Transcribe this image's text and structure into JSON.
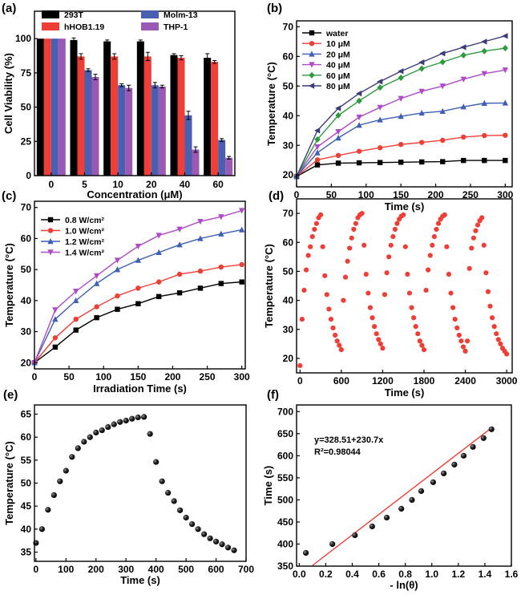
{
  "chart_data": [
    {
      "panel": "(a)",
      "type": "bar",
      "xlabel": "Concentration (μM)",
      "ylabel": "Cell Viability (%)",
      "ylim": [
        0,
        120
      ],
      "yticks": [
        0,
        25,
        50,
        75,
        100
      ],
      "categories": [
        "0",
        "5",
        "10",
        "20",
        "40",
        "60"
      ],
      "legend_position": "top",
      "series": [
        {
          "name": "293T",
          "color": "#000000",
          "values": [
            100,
            99,
            98,
            98,
            88,
            86
          ],
          "errors": [
            0,
            1.5,
            1,
            1,
            1,
            3
          ]
        },
        {
          "name": "hHOB1.19",
          "color": "#ef3e36",
          "values": [
            100,
            87,
            87,
            87,
            86,
            83
          ],
          "errors": [
            0,
            2,
            2,
            3,
            1.5,
            1
          ]
        },
        {
          "name": "Molm-13",
          "color": "#4a5fb0",
          "values": [
            100,
            77,
            66,
            66,
            44,
            26
          ],
          "errors": [
            0,
            1,
            1,
            2,
            3,
            1
          ]
        },
        {
          "name": "THP-1",
          "color": "#9b59b6",
          "values": [
            100,
            72,
            64,
            65,
            19,
            13
          ],
          "errors": [
            0,
            2,
            2,
            1,
            2,
            1
          ]
        }
      ]
    },
    {
      "panel": "(b)",
      "type": "line",
      "xlabel": "Time (s)",
      "ylabel": "Temperature (°C)",
      "xlim": [
        0,
        310
      ],
      "ylim": [
        16,
        72
      ],
      "xticks": [
        0,
        50,
        100,
        150,
        200,
        250,
        300
      ],
      "yticks": [
        20,
        30,
        40,
        50,
        60,
        70
      ],
      "legend_position": "top-left",
      "x": [
        0,
        30,
        60,
        90,
        120,
        150,
        180,
        210,
        240,
        270,
        300
      ],
      "series": [
        {
          "name": "water",
          "color": "#000000",
          "marker": "square",
          "values": [
            19.5,
            23.4,
            24.0,
            24.1,
            24.2,
            24.3,
            24.4,
            24.5,
            24.9,
            24.9,
            24.9
          ]
        },
        {
          "name": "10 μM",
          "color": "#ef3e36",
          "marker": "circle",
          "values": [
            19.5,
            25.1,
            26.6,
            28.0,
            29.2,
            30.3,
            31.0,
            31.7,
            32.8,
            33.3,
            33.4
          ]
        },
        {
          "name": "20 μM",
          "color": "#3d5fb5",
          "marker": "triangle",
          "values": [
            19.5,
            27.5,
            32.5,
            36.8,
            38.6,
            39.8,
            40.9,
            41.5,
            43.0,
            44.2,
            44.3
          ]
        },
        {
          "name": "40 μM",
          "color": "#b04bc8",
          "marker": "triangle-down",
          "values": [
            19.5,
            29.5,
            34.6,
            39.5,
            42.8,
            45.8,
            48.2,
            50.0,
            52.3,
            54.2,
            55.4
          ]
        },
        {
          "name": "60 μM",
          "color": "#2c9a3d",
          "marker": "diamond",
          "values": [
            19.5,
            32.0,
            40.1,
            45.0,
            49.5,
            52.8,
            55.9,
            58.1,
            60.4,
            61.8,
            62.8
          ]
        },
        {
          "name": "80 μM",
          "color": "#3c3c78",
          "marker": "triangle-left",
          "values": [
            19.5,
            35.0,
            42.5,
            47.5,
            51.5,
            55.0,
            58.0,
            61.0,
            63.1,
            65.0,
            66.9
          ]
        }
      ]
    },
    {
      "panel": "(c)",
      "type": "line",
      "xlabel": "Irradiation Time (s)",
      "ylabel": "Temperature (°C)",
      "xlim": [
        0,
        305
      ],
      "ylim": [
        18,
        72
      ],
      "xticks": [
        0,
        50,
        100,
        150,
        200,
        250,
        300
      ],
      "yticks": [
        20,
        30,
        40,
        50,
        60,
        70
      ],
      "legend_position": "top-left",
      "x": [
        0,
        30,
        60,
        90,
        120,
        150,
        180,
        210,
        240,
        270,
        300
      ],
      "series": [
        {
          "name": "0.8 W/cm²",
          "color": "#000000",
          "marker": "square",
          "values": [
            20,
            25.0,
            30.5,
            34.5,
            37.2,
            39.0,
            41.3,
            42.5,
            44.0,
            45.5,
            46.0
          ]
        },
        {
          "name": "1.0 W/cm²",
          "color": "#ef3e36",
          "marker": "circle",
          "values": [
            20,
            28.0,
            34.0,
            38.0,
            41.5,
            44.0,
            46.0,
            48.5,
            49.5,
            50.8,
            51.6
          ]
        },
        {
          "name": "1.2 W/cm²",
          "color": "#3d5fb5",
          "marker": "triangle",
          "values": [
            20,
            34.0,
            40.0,
            45.5,
            50.0,
            53.0,
            55.5,
            58.0,
            60.0,
            61.5,
            62.8
          ]
        },
        {
          "name": "1.4 W/cm²",
          "color": "#b04bc8",
          "marker": "triangle-down",
          "values": [
            20,
            37.0,
            43.0,
            48.0,
            53.0,
            57.5,
            61.0,
            63.0,
            65.5,
            67.0,
            69.0
          ]
        }
      ]
    },
    {
      "panel": "(d)",
      "type": "scatter",
      "xlabel": "Time (s)",
      "ylabel": "Temperature (°C)",
      "xlim": [
        -50,
        3080
      ],
      "ylim": [
        15,
        75
      ],
      "xticks": [
        0,
        600,
        1200,
        1800,
        2400,
        3000
      ],
      "yticks": [
        20,
        30,
        40,
        50,
        60,
        70
      ],
      "series": [
        {
          "name": "",
          "color": "#ef3e36",
          "marker": "circle",
          "x": [
            0,
            30,
            60,
            90,
            120,
            150,
            180,
            210,
            240,
            270,
            300,
            330,
            360,
            390,
            420,
            450,
            480,
            510,
            540,
            570,
            600,
            630,
            660,
            690,
            720,
            750,
            780,
            810,
            840,
            870,
            900,
            930,
            960,
            990,
            1020,
            1050,
            1080,
            1110,
            1140,
            1170,
            1200,
            1230,
            1260,
            1290,
            1320,
            1350,
            1380,
            1410,
            1440,
            1470,
            1500,
            1530,
            1560,
            1590,
            1620,
            1650,
            1680,
            1710,
            1740,
            1770,
            1800,
            1830,
            1860,
            1890,
            1920,
            1950,
            1980,
            2010,
            2040,
            2070,
            2100,
            2130,
            2160,
            2190,
            2220,
            2250,
            2280,
            2310,
            2340,
            2370,
            2400,
            2430,
            2460,
            2490,
            2520,
            2550,
            2580,
            2610,
            2640,
            2670,
            2700,
            2730,
            2760,
            2790,
            2820,
            2850,
            2880,
            2910,
            2940,
            2970,
            3000
          ],
          "y": [
            17.5,
            33.5,
            43.5,
            50.5,
            55.5,
            58.5,
            62.0,
            64.5,
            66.5,
            68.5,
            69.5,
            58.5,
            48.5,
            42.0,
            37.0,
            33.5,
            30.5,
            28.0,
            26.0,
            24.5,
            23.0,
            40.0,
            48.0,
            53.5,
            58.0,
            61.5,
            64.5,
            66.5,
            68.5,
            69.5,
            70.0,
            59.0,
            49.0,
            42.5,
            37.5,
            34.0,
            31.0,
            28.5,
            26.5,
            25.0,
            23.5,
            42.0,
            49.5,
            55.0,
            59.0,
            62.0,
            64.5,
            66.5,
            68.0,
            69.0,
            69.5,
            58.5,
            49.0,
            42.5,
            37.5,
            34.0,
            31.0,
            28.5,
            26.0,
            24.5,
            23.0,
            43.5,
            50.5,
            55.5,
            59.0,
            62.0,
            64.5,
            66.5,
            68.0,
            69.0,
            69.5,
            58.5,
            49.0,
            42.5,
            37.5,
            33.5,
            30.5,
            28.0,
            26.0,
            24.0,
            22.5,
            26.0,
            51.0,
            58.0,
            61.5,
            64.0,
            66.0,
            67.5,
            68.5,
            59.0,
            49.5,
            43.0,
            38.0,
            34.0,
            31.0,
            28.5,
            26.5,
            25.0,
            23.5,
            22.5,
            21.5
          ]
        }
      ]
    },
    {
      "panel": "(e)",
      "type": "scatter",
      "xlabel": "Time (s)",
      "ylabel": "Temperature (°C)",
      "xlim": [
        -5,
        700
      ],
      "ylim": [
        33,
        67
      ],
      "xticks": [
        0,
        100,
        200,
        300,
        400,
        500,
        600,
        700
      ],
      "yticks": [
        35,
        40,
        45,
        50,
        55,
        60,
        65
      ],
      "series": [
        {
          "name": "",
          "color": "#000000",
          "marker": "circle",
          "x": [
            0,
            20,
            40,
            60,
            80,
            100,
            120,
            140,
            160,
            180,
            200,
            220,
            240,
            260,
            280,
            300,
            320,
            340,
            360,
            380,
            400,
            420,
            440,
            460,
            480,
            500,
            520,
            540,
            560,
            580,
            600,
            620,
            640,
            660
          ],
          "y": [
            37.0,
            40.0,
            44.2,
            47.4,
            50.4,
            52.7,
            55.7,
            57.6,
            59.0,
            60.0,
            61.0,
            61.5,
            62.2,
            62.8,
            63.3,
            63.6,
            64.0,
            64.3,
            64.4,
            60.7,
            54.6,
            50.4,
            47.9,
            46.1,
            44.1,
            42.5,
            41.1,
            40.0,
            38.9,
            38.0,
            37.3,
            36.7,
            36.0,
            35.4
          ]
        }
      ]
    },
    {
      "panel": "(f)",
      "type": "scatter",
      "xlabel": "- ln(θ)",
      "ylabel": "Time (s)",
      "xlim": [
        -0.02,
        1.6
      ],
      "ylim": [
        350,
        715
      ],
      "xticks": [
        0.0,
        0.2,
        0.4,
        0.6,
        0.8,
        1.0,
        1.2,
        1.4,
        1.6
      ],
      "yticks": [
        350,
        400,
        450,
        500,
        550,
        600,
        650,
        700
      ],
      "annotation": [
        "y=328.51+230.7x",
        "R²=0.98044"
      ],
      "fit": {
        "intercept": 328.51,
        "slope": 230.7,
        "color": "#ef3e36",
        "x_range": [
          0.1,
          1.46
        ]
      },
      "series": [
        {
          "name": "",
          "color": "#000000",
          "marker": "circle",
          "x": [
            0.05,
            0.25,
            0.42,
            0.55,
            0.66,
            0.77,
            0.85,
            0.92,
            1.01,
            1.09,
            1.17,
            1.24,
            1.31,
            1.39,
            1.45
          ],
          "y": [
            380,
            400,
            420,
            440,
            460,
            480,
            500,
            520,
            540,
            560,
            580,
            600,
            620,
            640,
            660
          ]
        }
      ]
    }
  ]
}
